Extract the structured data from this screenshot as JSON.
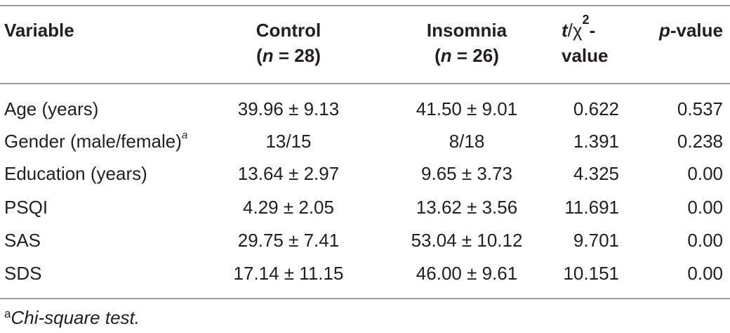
{
  "table": {
    "headers": {
      "variable": "Variable",
      "control_line1": "Control",
      "control_n": "n",
      "control_rest": " = 28)",
      "insomnia_line1": "Insomnia",
      "insomnia_n": "n",
      "insomnia_rest": " = 26)",
      "stat_t": "t",
      "stat_chi": "/χ",
      "stat_sup": "2",
      "stat_dash": "-",
      "stat_line2": "value",
      "p_italic": "p",
      "p_rest": "-value",
      "open_paren": "("
    },
    "rows": [
      {
        "variable": "Age (years)",
        "sup": "",
        "control": "39.96 ± 9.13",
        "insomnia": "41.50 ± 9.01",
        "stat": "0.622",
        "p": "0.537"
      },
      {
        "variable": "Gender (male/female)",
        "sup": "a",
        "control": "13/15",
        "insomnia": "8/18",
        "stat": "1.391",
        "p": "0.238"
      },
      {
        "variable": "Education (years)",
        "sup": "",
        "control": "13.64 ± 2.97",
        "insomnia": "9.65 ± 3.73",
        "stat": "4.325",
        "p": "0.00"
      },
      {
        "variable": "PSQI",
        "sup": "",
        "control": "4.29 ± 2.05",
        "insomnia": "13.62 ± 3.56",
        "stat": "11.691",
        "p": "0.00"
      },
      {
        "variable": "SAS",
        "sup": "",
        "control": "29.75 ± 7.41",
        "insomnia": "53.04 ± 10.12",
        "stat": "9.701",
        "p": "0.00"
      },
      {
        "variable": "SDS",
        "sup": "",
        "control": "17.14 ± 11.15",
        "insomnia": "46.00 ± 9.61",
        "stat": "10.151",
        "p": "0.00"
      }
    ]
  },
  "footnote": {
    "mark": "a",
    "text": "Chi-square test."
  }
}
